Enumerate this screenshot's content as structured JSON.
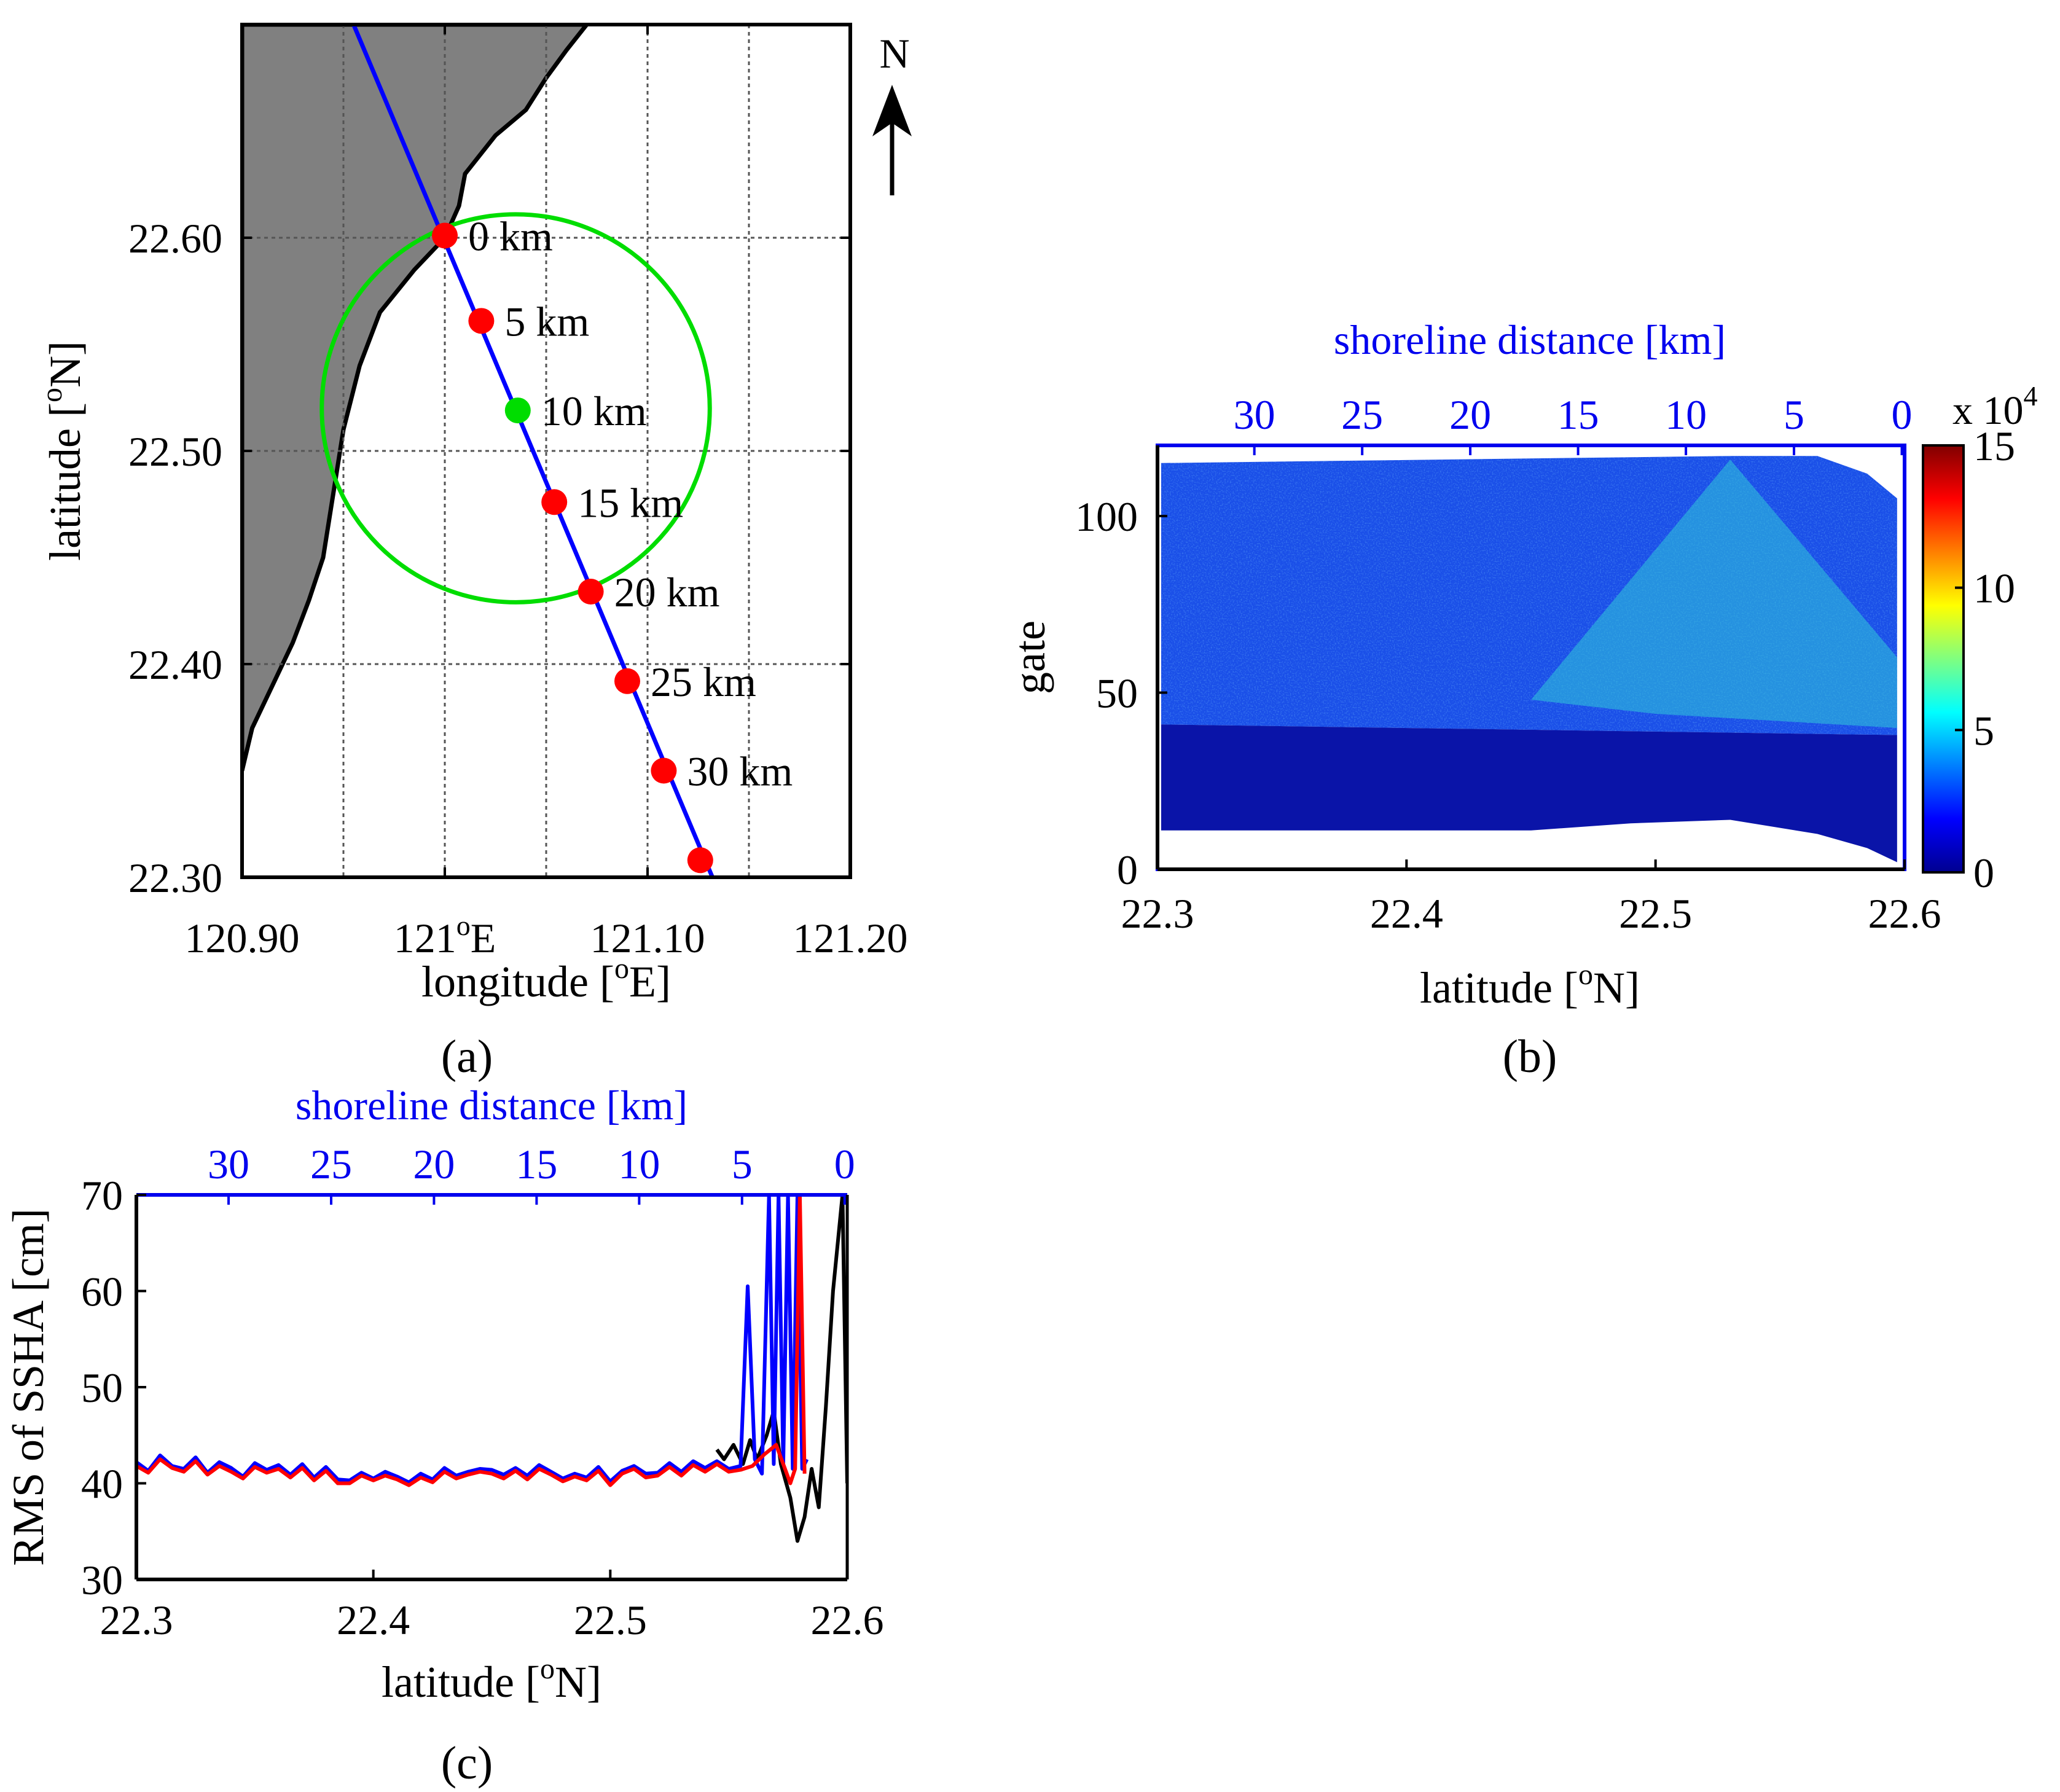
{
  "chart_data": [
    {
      "panel": "a",
      "type": "map",
      "panel_label": "(a)",
      "xlabel": "longitude [°E]",
      "ylabel": "latitude [°N]",
      "xlim": [
        120.9,
        121.2
      ],
      "ylim": [
        22.3,
        22.7
      ],
      "xticks": [
        {
          "v": 120.9,
          "label": "120.90"
        },
        {
          "v": 121.0,
          "label": "121°E"
        },
        {
          "v": 121.1,
          "label": "121.10"
        },
        {
          "v": 121.2,
          "label": "121.20"
        }
      ],
      "yticks": [
        {
          "v": 22.3,
          "label": "22.30"
        },
        {
          "v": 22.4,
          "label": "22.40"
        },
        {
          "v": 22.5,
          "label": "22.50"
        },
        {
          "v": 22.6,
          "label": "22.60"
        }
      ],
      "grid_lon": [
        120.95,
        121.0,
        121.05,
        121.1,
        121.15
      ],
      "grid_lat": [
        22.4,
        22.5,
        22.6
      ],
      "north_label": "N",
      "coastline": [
        [
          120.9,
          22.35
        ],
        [
          120.905,
          22.37
        ],
        [
          120.915,
          22.39
        ],
        [
          120.925,
          22.41
        ],
        [
          120.933,
          22.43
        ],
        [
          120.94,
          22.45
        ],
        [
          120.945,
          22.48
        ],
        [
          120.95,
          22.51
        ],
        [
          120.958,
          22.54
        ],
        [
          120.968,
          22.565
        ],
        [
          120.985,
          22.585
        ],
        [
          121.0,
          22.6
        ],
        [
          121.007,
          22.615
        ],
        [
          121.01,
          22.63
        ],
        [
          121.025,
          22.648
        ],
        [
          121.04,
          22.66
        ],
        [
          121.05,
          22.675
        ],
        [
          121.06,
          22.688
        ],
        [
          121.07,
          22.7
        ]
      ],
      "track": [
        [
          120.955,
          22.7
        ],
        [
          121.132,
          22.3
        ]
      ],
      "track_color": "#0000ff",
      "circle": {
        "lon": 121.035,
        "lat": 22.52,
        "radius_deg_lat": 0.091
      },
      "circle_color": "#00dd00",
      "points": [
        {
          "lon": 121.0,
          "lat": 22.601,
          "label": "0 km",
          "color": "#ff0000"
        },
        {
          "lon": 121.018,
          "lat": 22.561,
          "label": "5 km",
          "color": "#ff0000"
        },
        {
          "lon": 121.036,
          "lat": 22.519,
          "label": "10 km",
          "color": "#00dd00"
        },
        {
          "lon": 121.054,
          "lat": 22.476,
          "label": "15 km",
          "color": "#ff0000"
        },
        {
          "lon": 121.072,
          "lat": 22.434,
          "label": "20 km",
          "color": "#ff0000"
        },
        {
          "lon": 121.09,
          "lat": 22.392,
          "label": "25 km",
          "color": "#ff0000"
        },
        {
          "lon": 121.108,
          "lat": 22.35,
          "label": "30 km",
          "color": "#ff0000"
        },
        {
          "lon": 121.126,
          "lat": 22.308,
          "label": "",
          "color": "#ff0000"
        }
      ]
    },
    {
      "panel": "b",
      "type": "heatmap",
      "panel_label": "(b)",
      "title": "shoreline distance [km]",
      "xlabel": "latitude [°N]",
      "ylabel": "gate",
      "xlim": [
        22.3,
        22.6
      ],
      "ylim": [
        0,
        120
      ],
      "xticks": [
        {
          "v": 22.3,
          "label": "22.3"
        },
        {
          "v": 22.4,
          "label": "22.4"
        },
        {
          "v": 22.5,
          "label": "22.5"
        },
        {
          "v": 22.6,
          "label": "22.6"
        }
      ],
      "yticks": [
        {
          "v": 0,
          "label": "0"
        },
        {
          "v": 50,
          "label": "50"
        },
        {
          "v": 100,
          "label": "100"
        }
      ],
      "top_ticks": [
        {
          "lat": 22.3389,
          "label": "30"
        },
        {
          "lat": 22.3822,
          "label": "25"
        },
        {
          "lat": 22.4256,
          "label": "20"
        },
        {
          "lat": 22.4689,
          "label": "15"
        },
        {
          "lat": 22.5122,
          "label": "10"
        },
        {
          "lat": 22.5556,
          "label": "5"
        },
        {
          "lat": 22.5989,
          "label": "0"
        }
      ],
      "colorbar": {
        "min": 0,
        "max": 15,
        "ticks": [
          {
            "v": 0,
            "label": "0"
          },
          {
            "v": 5,
            "label": "5"
          },
          {
            "v": 10,
            "label": "10"
          },
          {
            "v": 15,
            "label": "15"
          }
        ],
        "multiplier": "x 10",
        "exponent": "4"
      },
      "regions": [
        {
          "name": "low-gates",
          "gate_range": [
            10,
            41
          ],
          "power_e4": 0.5
        },
        {
          "name": "signal",
          "gate_range": [
            41,
            115
          ],
          "power_e4": 3.0
        },
        {
          "name": "near-shore-bright",
          "lat_range": [
            22.52,
            22.6
          ],
          "gate_range": [
            40,
            60
          ],
          "power_e4": 5.5
        }
      ]
    },
    {
      "panel": "c",
      "type": "line",
      "panel_label": "(c)",
      "title": "shoreline distance [km]",
      "xlabel": "latitude [°N]",
      "ylabel": "RMS of SSHA [cm]",
      "xlim": [
        22.3,
        22.6
      ],
      "ylim": [
        30,
        70
      ],
      "xticks": [
        {
          "v": 22.3,
          "label": "22.3"
        },
        {
          "v": 22.4,
          "label": "22.4"
        },
        {
          "v": 22.5,
          "label": "22.5"
        },
        {
          "v": 22.6,
          "label": "22.6"
        }
      ],
      "yticks": [
        {
          "v": 30,
          "label": "30"
        },
        {
          "v": 40,
          "label": "40"
        },
        {
          "v": 50,
          "label": "50"
        },
        {
          "v": 60,
          "label": "60"
        },
        {
          "v": 70,
          "label": "70"
        }
      ],
      "top_ticks": [
        {
          "lat": 22.3389,
          "label": "30"
        },
        {
          "lat": 22.3822,
          "label": "25"
        },
        {
          "lat": 22.4256,
          "label": "20"
        },
        {
          "lat": 22.4689,
          "label": "15"
        },
        {
          "lat": 22.5122,
          "label": "10"
        },
        {
          "lat": 22.5556,
          "label": "5"
        },
        {
          "lat": 22.5989,
          "label": "0"
        }
      ],
      "series": [
        {
          "name": "black",
          "color": "#000000",
          "x": [
            22.545,
            22.548,
            22.552,
            22.556,
            22.559,
            22.562,
            22.566,
            22.569,
            22.572,
            22.576,
            22.579,
            22.582,
            22.585,
            22.588,
            22.591,
            22.594,
            22.598,
            22.6
          ],
          "y": [
            43.5,
            42.5,
            44.0,
            42.0,
            44.5,
            42.5,
            45.0,
            47.5,
            42.0,
            38.5,
            34.0,
            36.5,
            41.5,
            37.5,
            48.0,
            60.0,
            70.0,
            40.0
          ]
        },
        {
          "name": "blue",
          "color": "#0000ff",
          "x": [
            22.3,
            22.305,
            22.31,
            22.315,
            22.32,
            22.325,
            22.33,
            22.335,
            22.34,
            22.345,
            22.35,
            22.355,
            22.36,
            22.365,
            22.37,
            22.375,
            22.38,
            22.385,
            22.39,
            22.395,
            22.4,
            22.405,
            22.41,
            22.415,
            22.42,
            22.425,
            22.43,
            22.435,
            22.44,
            22.445,
            22.45,
            22.455,
            22.46,
            22.465,
            22.47,
            22.475,
            22.48,
            22.485,
            22.49,
            22.495,
            22.5,
            22.505,
            22.51,
            22.515,
            22.52,
            22.525,
            22.53,
            22.535,
            22.54,
            22.545,
            22.55,
            22.555,
            22.558,
            22.561,
            22.564,
            22.567,
            22.569,
            22.571,
            22.573,
            22.575,
            22.577,
            22.579,
            22.581,
            22.583
          ],
          "y": [
            42.2,
            41.3,
            42.9,
            41.8,
            41.5,
            42.7,
            41.1,
            42.2,
            41.6,
            40.7,
            42.1,
            41.4,
            41.9,
            40.9,
            42.0,
            40.6,
            41.7,
            40.4,
            40.3,
            41.1,
            40.5,
            41.2,
            40.7,
            40.1,
            41.0,
            40.4,
            41.6,
            40.8,
            41.2,
            41.5,
            41.4,
            40.9,
            41.6,
            40.8,
            41.9,
            41.2,
            40.5,
            41.0,
            40.6,
            41.7,
            40.2,
            41.3,
            41.8,
            41.0,
            41.1,
            42.1,
            41.2,
            42.3,
            41.6,
            42.3,
            41.5,
            41.8,
            60.5,
            42.5,
            41.0,
            70.0,
            42.0,
            70.0,
            42.0,
            70.0,
            41.5,
            70.0,
            41.5,
            42.5
          ]
        },
        {
          "name": "red",
          "color": "#ff0000",
          "x": [
            22.3,
            22.305,
            22.31,
            22.315,
            22.32,
            22.325,
            22.33,
            22.335,
            22.34,
            22.345,
            22.35,
            22.355,
            22.36,
            22.365,
            22.37,
            22.375,
            22.38,
            22.385,
            22.39,
            22.395,
            22.4,
            22.405,
            22.41,
            22.415,
            22.42,
            22.425,
            22.43,
            22.435,
            22.44,
            22.445,
            22.45,
            22.455,
            22.46,
            22.465,
            22.47,
            22.475,
            22.48,
            22.485,
            22.49,
            22.495,
            22.5,
            22.505,
            22.51,
            22.515,
            22.52,
            22.525,
            22.53,
            22.535,
            22.54,
            22.545,
            22.55,
            22.555,
            22.56,
            22.565,
            22.57,
            22.573,
            22.576,
            22.578,
            22.58,
            22.582
          ],
          "y": [
            41.8,
            41.1,
            42.5,
            41.6,
            41.2,
            42.3,
            40.9,
            41.8,
            41.2,
            40.5,
            41.7,
            41.1,
            41.5,
            40.6,
            41.6,
            40.3,
            41.3,
            40.0,
            40.0,
            40.8,
            40.3,
            40.8,
            40.4,
            39.8,
            40.6,
            40.1,
            41.2,
            40.5,
            40.9,
            41.2,
            41.0,
            40.5,
            41.3,
            40.4,
            41.5,
            40.9,
            40.2,
            40.7,
            40.3,
            41.3,
            39.8,
            41.0,
            41.5,
            40.6,
            40.8,
            41.7,
            40.8,
            41.9,
            41.2,
            42.0,
            41.2,
            41.4,
            41.8,
            43.0,
            44.0,
            42.0,
            40.0,
            41.5,
            70.0,
            41.0
          ]
        }
      ]
    }
  ]
}
